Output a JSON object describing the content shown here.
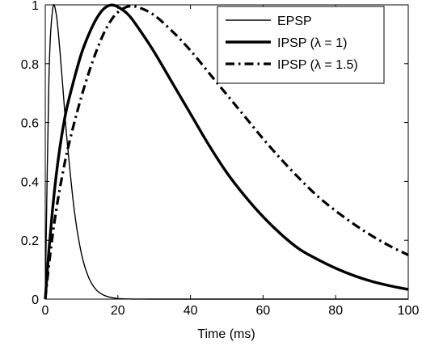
{
  "chart_data": {
    "type": "line",
    "title": "",
    "xlabel": "Time (ms)",
    "ylabel": "",
    "xlim": [
      0,
      100
    ],
    "ylim": [
      0,
      1
    ],
    "grid": false,
    "legend_position": "top-right",
    "x_ticks": [
      0,
      20,
      40,
      60,
      80,
      100
    ],
    "y_ticks": [
      0,
      0.2,
      0.4,
      0.6,
      0.8,
      1
    ],
    "x_tick_labels": [
      "0",
      "20",
      "40",
      "60",
      "80",
      "100"
    ],
    "y_tick_labels": [
      "0",
      "0.2",
      "0.4",
      "0.6",
      "0.8",
      "1"
    ],
    "x": [
      0,
      1,
      2,
      3,
      4,
      5,
      6,
      8,
      10,
      12,
      14,
      16,
      18,
      20,
      23,
      26,
      30,
      35,
      40,
      45,
      50,
      55,
      60,
      65,
      70,
      75,
      80,
      85,
      90,
      95,
      100
    ],
    "series": [
      {
        "name": "EPSP",
        "style": "thin-solid",
        "color": "#000000",
        "values": [
          0,
          0.744,
          0.982,
          0.97,
          0.849,
          0.695,
          0.54,
          0.301,
          0.152,
          0.072,
          0.032,
          0.014,
          0.006,
          0.002,
          0.0005,
          0.0001,
          0,
          0,
          0,
          0,
          0,
          0,
          0,
          0,
          0,
          0,
          0,
          0,
          0,
          0,
          0
        ]
      },
      {
        "name": "IPSP (λ = 1)",
        "style": "thick-solid",
        "color": "#000000",
        "values": [
          0,
          0.166,
          0.304,
          0.419,
          0.513,
          0.59,
          0.653,
          0.75,
          0.836,
          0.9,
          0.951,
          0.985,
          0.999,
          0.993,
          0.965,
          0.915,
          0.84,
          0.735,
          0.63,
          0.525,
          0.43,
          0.35,
          0.28,
          0.22,
          0.17,
          0.135,
          0.105,
          0.08,
          0.06,
          0.045,
          0.033
        ]
      },
      {
        "name": "IPSP (λ = 1.5)",
        "style": "thick-dashdot",
        "color": "#000000",
        "values": [
          0,
          0.115,
          0.215,
          0.301,
          0.375,
          0.44,
          0.5,
          0.6,
          0.69,
          0.77,
          0.84,
          0.9,
          0.945,
          0.975,
          0.995,
          0.99,
          0.965,
          0.91,
          0.845,
          0.77,
          0.695,
          0.62,
          0.545,
          0.475,
          0.41,
          0.35,
          0.3,
          0.255,
          0.215,
          0.18,
          0.15
        ]
      }
    ]
  }
}
